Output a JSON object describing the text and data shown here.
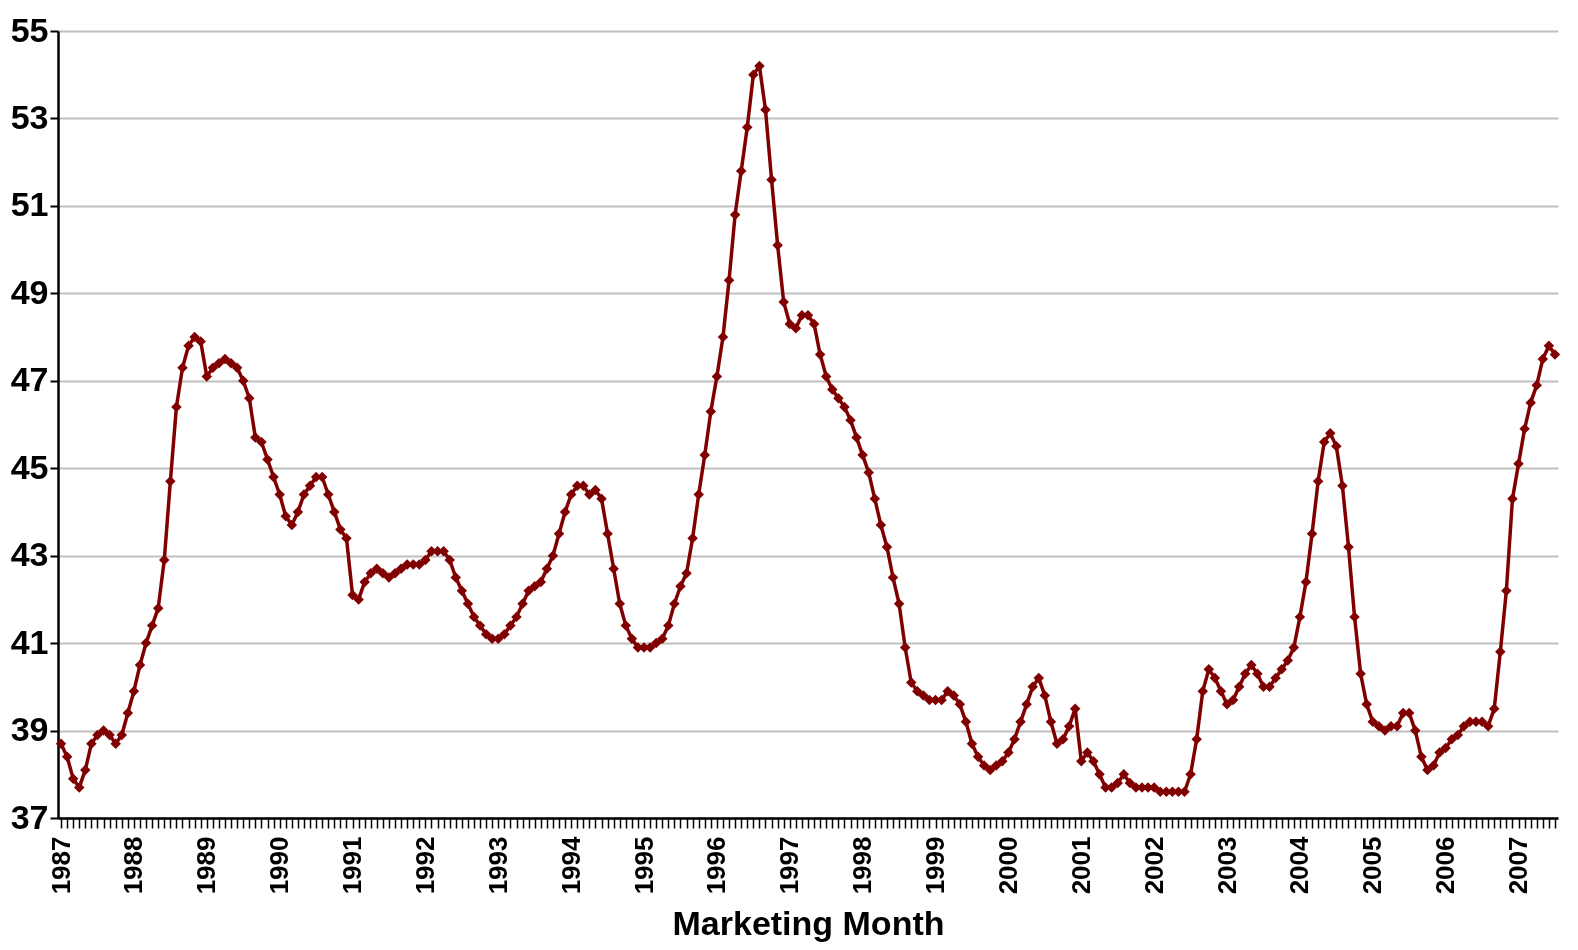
{
  "chart_data": {
    "type": "line",
    "xlabel": "Marketing Month",
    "categories": [
      "1987",
      null,
      null,
      null,
      null,
      null,
      null,
      null,
      null,
      null,
      null,
      null,
      "1988",
      null,
      null,
      null,
      null,
      null,
      null,
      null,
      null,
      null,
      null,
      null,
      "1989",
      null,
      null,
      null,
      null,
      null,
      null,
      null,
      null,
      null,
      null,
      null,
      "1990",
      null,
      null,
      null,
      null,
      null,
      null,
      null,
      null,
      null,
      null,
      null,
      "1991",
      null,
      null,
      null,
      null,
      null,
      null,
      null,
      null,
      null,
      null,
      null,
      "1992",
      null,
      null,
      null,
      null,
      null,
      null,
      null,
      null,
      null,
      null,
      null,
      "1993",
      null,
      null,
      null,
      null,
      null,
      null,
      null,
      null,
      null,
      null,
      null,
      "1994",
      null,
      null,
      null,
      null,
      null,
      null,
      null,
      null,
      null,
      null,
      null,
      "1995",
      null,
      null,
      null,
      null,
      null,
      null,
      null,
      null,
      null,
      null,
      null,
      "1996",
      null,
      null,
      null,
      null,
      null,
      null,
      null,
      null,
      null,
      null,
      null,
      "1997",
      null,
      null,
      null,
      null,
      null,
      null,
      null,
      null,
      null,
      null,
      null,
      "1998",
      null,
      null,
      null,
      null,
      null,
      null,
      null,
      null,
      null,
      null,
      null,
      "1999",
      null,
      null,
      null,
      null,
      null,
      null,
      null,
      null,
      null,
      null,
      null,
      "2000",
      null,
      null,
      null,
      null,
      null,
      null,
      null,
      null,
      null,
      null,
      null,
      "2001",
      null,
      null,
      null,
      null,
      null,
      null,
      null,
      null,
      null,
      null,
      null,
      "2002",
      null,
      null,
      null,
      null,
      null,
      null,
      null,
      null,
      null,
      null,
      null,
      "2003",
      null,
      null,
      null,
      null,
      null,
      null,
      null,
      null,
      null,
      null,
      null,
      "2004",
      null,
      null,
      null,
      null,
      null,
      null,
      null,
      null,
      null,
      null,
      null,
      "2005",
      null,
      null,
      null,
      null,
      null,
      null,
      null,
      null,
      null,
      null,
      null,
      "2006",
      null,
      null,
      null,
      null,
      null,
      null,
      null,
      null,
      null,
      null,
      null,
      "2007",
      null,
      null,
      null,
      null,
      null,
      null
    ],
    "series": [
      {
        "color": "#800000",
        "values": [
          38.7,
          38.4,
          37.9,
          37.7,
          38.1,
          38.7,
          38.9,
          39.0,
          38.9,
          38.7,
          38.9,
          39.4,
          39.9,
          40.5,
          41.0,
          41.4,
          41.8,
          42.9,
          44.7,
          46.4,
          47.3,
          47.8,
          48.0,
          47.9,
          47.1,
          47.3,
          47.4,
          47.5,
          47.4,
          47.3,
          47.0,
          46.6,
          45.7,
          45.6,
          45.2,
          44.8,
          44.4,
          43.9,
          43.7,
          44.0,
          44.4,
          44.6,
          44.8,
          44.8,
          44.4,
          44.0,
          43.6,
          43.4,
          42.1,
          42.0,
          42.4,
          42.6,
          42.7,
          42.6,
          42.5,
          42.6,
          42.7,
          42.8,
          42.8,
          42.8,
          42.9,
          43.1,
          43.1,
          43.1,
          42.9,
          42.5,
          42.2,
          41.9,
          41.6,
          41.4,
          41.2,
          41.1,
          41.1,
          41.2,
          41.4,
          41.6,
          41.9,
          42.2,
          42.3,
          42.4,
          42.7,
          43.0,
          43.5,
          44.0,
          44.4,
          44.6,
          44.6,
          44.4,
          44.5,
          44.3,
          43.5,
          42.7,
          41.9,
          41.4,
          41.1,
          40.9,
          40.9,
          40.9,
          41.0,
          41.1,
          41.4,
          41.9,
          42.3,
          42.6,
          43.4,
          44.4,
          45.3,
          46.3,
          47.1,
          48.0,
          49.3,
          50.8,
          51.8,
          52.8,
          54.0,
          54.2,
          53.2,
          51.6,
          50.1,
          48.8,
          48.3,
          48.2,
          48.5,
          48.5,
          48.3,
          47.6,
          47.1,
          46.8,
          46.6,
          46.4,
          46.1,
          45.7,
          45.3,
          44.9,
          44.3,
          43.7,
          43.2,
          42.5,
          41.9,
          40.9,
          40.1,
          39.9,
          39.8,
          39.7,
          39.7,
          39.7,
          39.9,
          39.8,
          39.6,
          39.2,
          38.7,
          38.4,
          38.2,
          38.1,
          38.2,
          38.3,
          38.5,
          38.8,
          39.2,
          39.6,
          40.0,
          40.2,
          39.8,
          39.2,
          38.7,
          38.8,
          39.1,
          39.5,
          38.3,
          38.5,
          38.3,
          38.0,
          37.7,
          37.7,
          37.8,
          38.0,
          37.8,
          37.7,
          37.7,
          37.7,
          37.7,
          37.6,
          37.6,
          37.6,
          37.6,
          37.6,
          38.0,
          38.8,
          39.9,
          40.4,
          40.2,
          39.9,
          39.6,
          39.7,
          40.0,
          40.3,
          40.5,
          40.3,
          40.0,
          40.0,
          40.2,
          40.4,
          40.6,
          40.9,
          41.6,
          42.4,
          43.5,
          44.7,
          45.6,
          45.8,
          45.5,
          44.6,
          43.2,
          41.6,
          40.3,
          39.6,
          39.2,
          39.1,
          39.0,
          39.1,
          39.1,
          39.4,
          39.4,
          39.0,
          38.4,
          38.1,
          38.2,
          38.5,
          38.6,
          38.8,
          38.9,
          39.1,
          39.2,
          39.2,
          39.2,
          39.1,
          39.5,
          40.8,
          42.2,
          44.3,
          45.1,
          45.9,
          46.5,
          46.9,
          47.5,
          47.8,
          47.6
        ]
      }
    ],
    "ylim": [
      37,
      55
    ],
    "yticks": [
      37,
      39,
      41,
      43,
      45,
      47,
      49,
      51,
      53,
      55
    ],
    "grid": "y",
    "marker": "diamond",
    "line_style": "solid",
    "legend": false
  }
}
